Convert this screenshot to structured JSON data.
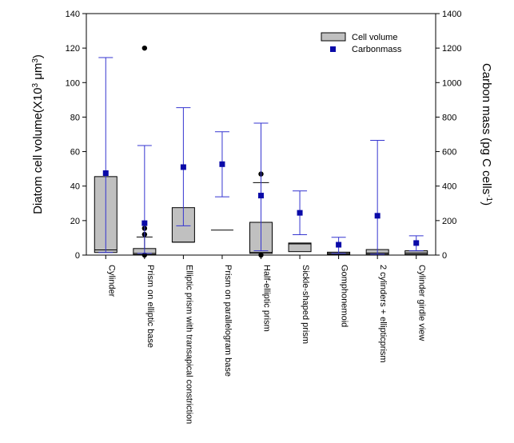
{
  "chart_data": {
    "type": "box",
    "categories": [
      "Cylinder",
      "Prism on elliptic base",
      "Elliptic prism with transapical constriction",
      "Prism on parallelogram base",
      "Half-elliptic prism",
      "Sickle-shaped prism",
      "Gomphonemoid",
      "2 cylinders + ellipticprism",
      "Cylinder girdle view"
    ],
    "left_axis": {
      "label_prefix": "Diatom cell volume(X10",
      "label_sup": "3",
      "label_suffix": " μm",
      "label_sup2": "3",
      "label_close": ")",
      "ylim": [
        0,
        140
      ],
      "ticks": [
        "0",
        "20",
        "40",
        "60",
        "80",
        "100",
        "120",
        "140"
      ]
    },
    "right_axis": {
      "label_prefix": "Carbon mass (pg C cells",
      "label_sup": "-1",
      "label_close": ")",
      "ylim": [
        0,
        1400
      ],
      "ticks": [
        "0",
        "200",
        "400",
        "600",
        "800",
        "1000",
        "1200",
        "1400"
      ]
    },
    "cell_volume": {
      "name": "Cell volume",
      "color": "#c0c0c0",
      "boxes": [
        {
          "q1": 1.5,
          "median": 3.0,
          "q3": 45.5,
          "whisker_low": null,
          "whisker_high": null,
          "outliers": []
        },
        {
          "q1": 0.3,
          "median": 1.0,
          "q3": 3.8,
          "whisker_low": null,
          "whisker_high": 10.5,
          "outliers": [
            120,
            15.5,
            12,
            0
          ]
        },
        {
          "q1": 7.5,
          "median": 7.5,
          "q3": 27.5,
          "whisker_low": null,
          "whisker_high": null,
          "outliers": []
        },
        {
          "q1": 14.5,
          "median": 14.5,
          "q3": 14.5,
          "whisker_low": null,
          "whisker_high": null,
          "outliers": []
        },
        {
          "q1": 1.0,
          "median": 1.5,
          "q3": 19.0,
          "whisker_low": null,
          "whisker_high": 42.0,
          "outliers": [
            47,
            0
          ]
        },
        {
          "q1": 2.0,
          "median": 6.5,
          "q3": 7.0,
          "whisker_low": null,
          "whisker_high": null,
          "outliers": []
        },
        {
          "q1": 0.4,
          "median": 1.0,
          "q3": 1.7,
          "whisker_low": null,
          "whisker_high": null,
          "outliers": []
        },
        {
          "q1": 0.5,
          "median": 1.2,
          "q3": 3.2,
          "whisker_low": null,
          "whisker_high": null,
          "outliers": []
        },
        {
          "q1": 0.4,
          "median": 1.2,
          "q3": 2.5,
          "whisker_low": null,
          "whisker_high": null,
          "outliers": []
        }
      ]
    },
    "carbon_mass": {
      "name": "Carbonmass",
      "color": "#0a0aa8",
      "errorbar_color": "#3535d0",
      "points": [
        {
          "mean": 475,
          "low": 15,
          "high": 1145
        },
        {
          "mean": 185,
          "low": 10,
          "high": 635
        },
        {
          "mean": 510,
          "low": 170,
          "high": 855
        },
        {
          "mean": 527,
          "low": 338,
          "high": 715
        },
        {
          "mean": 345,
          "low": 25,
          "high": 765
        },
        {
          "mean": 245,
          "low": 118,
          "high": 372
        },
        {
          "mean": 60,
          "low": 10,
          "high": 103
        },
        {
          "mean": 228,
          "low": 5,
          "high": 665
        },
        {
          "mean": 70,
          "low": 25,
          "high": 112
        }
      ]
    },
    "legend": {
      "position": "top-right",
      "items": [
        "Cell volume",
        "Carbonmass"
      ]
    }
  }
}
